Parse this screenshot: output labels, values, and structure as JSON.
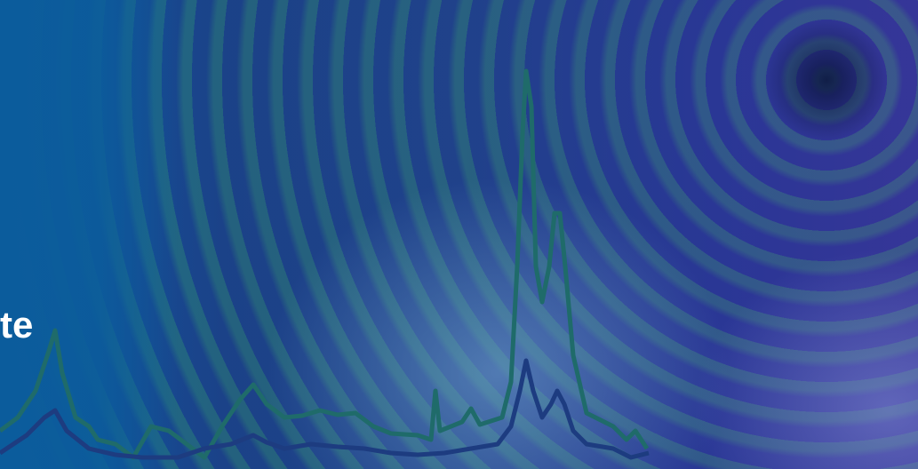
{
  "banner": {
    "heading": "te"
  }
}
